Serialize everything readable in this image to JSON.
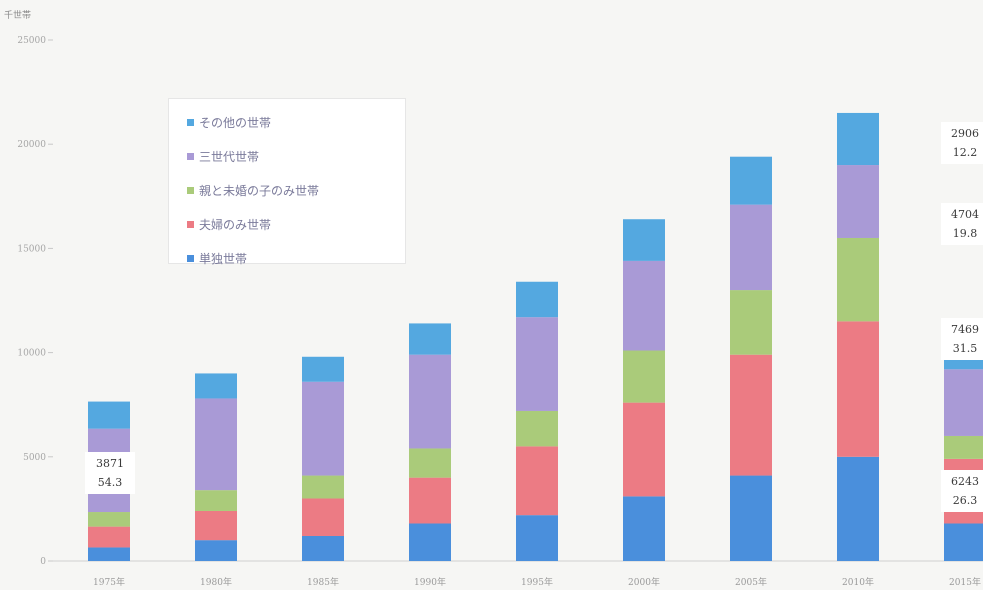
{
  "chart_data": {
    "type": "bar",
    "stacked": true,
    "unit_label": "千世帯",
    "categories": [
      "1975年",
      "1980年",
      "1985年",
      "1990年",
      "1995年",
      "2000年",
      "2005年",
      "2010年",
      "2015年"
    ],
    "y_ticks": [
      "0",
      "5000",
      "10000",
      "15000",
      "20000",
      "25000"
    ],
    "ylim": [
      0,
      25000
    ],
    "series": [
      {
        "name": "単独世帯",
        "color": "#4a8fdc",
        "values": [
          650,
          1000,
          1200,
          1800,
          2200,
          3100,
          4100,
          5000,
          1800
        ]
      },
      {
        "name": "夫婦のみ世帯",
        "color": "#ec7b84",
        "values": [
          1000,
          1400,
          1800,
          2200,
          3300,
          4500,
          5800,
          6500,
          3100
        ]
      },
      {
        "name": "親と未婚の子のみ世帯",
        "color": "#aacb7a",
        "values": [
          700,
          1000,
          1100,
          1400,
          1700,
          2500,
          3100,
          4000,
          1100
        ]
      },
      {
        "name": "三世代世帯",
        "color": "#a99ad6",
        "values": [
          4000,
          4400,
          4500,
          4500,
          4500,
          4300,
          4100,
          3500,
          3200
        ]
      },
      {
        "name": "その他の世帯",
        "color": "#54a8e0",
        "values": [
          1300,
          1200,
          1200,
          1500,
          1700,
          2000,
          2300,
          2500,
          2400
        ]
      }
    ],
    "data_labels": [
      {
        "lines": [
          "3871",
          "54.3"
        ]
      },
      {
        "lines": [
          "6243",
          "26.3"
        ]
      },
      {
        "lines": [
          "7469",
          "31.5"
        ]
      },
      {
        "lines": [
          "4704",
          "19.8"
        ]
      },
      {
        "lines": [
          "2906",
          "12.2"
        ]
      }
    ],
    "legend_position": "top-left",
    "legend_order": [
      "その他の世帯",
      "三世代世帯",
      "親と未婚の子のみ世帯",
      "夫婦のみ世帯",
      "単独世帯"
    ]
  }
}
